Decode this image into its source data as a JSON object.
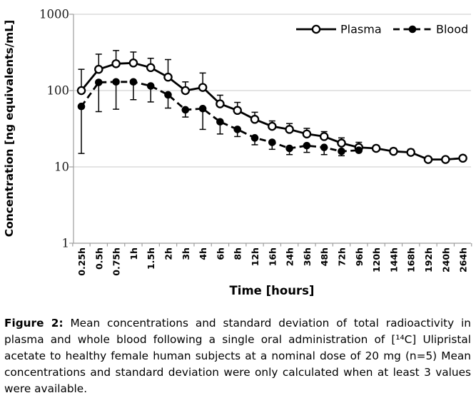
{
  "figure": {
    "caption_label": "Figure 2:",
    "caption_text": " Mean concentrations and standard deviation of total radioactivity in plasma and whole blood following a single oral administration of [¹⁴C] Ulipristal acetate to healthy female human subjects at a nominal dose of 20 mg (n=5) Mean concentrations and standard deviation were only calculated when at least 3 values were available."
  },
  "chart_data": {
    "type": "line",
    "y_scale": "log",
    "title": "",
    "xlabel": "Time [hours]",
    "ylabel": "Concentration [ng equivalents/mL]",
    "ylim": [
      1,
      1000
    ],
    "yticks": [
      1,
      10,
      100,
      1000
    ],
    "grid": "horizontal",
    "legend_position": "top-right-inside",
    "categories": [
      "0.25h",
      "0.5h",
      "0.75h",
      "1h",
      "1.5h",
      "2h",
      "3h",
      "4h",
      "6h",
      "8h",
      "12h",
      "16h",
      "24h",
      "36h",
      "48h",
      "72h",
      "96h",
      "120h",
      "144h",
      "168h",
      "192h",
      "240h",
      "264h"
    ],
    "series": [
      {
        "name": "Plasma",
        "marker": "open-circle",
        "line": "solid",
        "color": "#000000",
        "values": [
          100,
          190,
          225,
          230,
          200,
          150,
          100,
          110,
          67,
          55,
          42,
          34,
          31,
          27,
          25,
          20.5,
          18,
          17.5,
          16,
          15.5,
          12.5,
          12.5,
          13
        ],
        "err_hi": [
          190,
          300,
          335,
          320,
          265,
          255,
          130,
          170,
          87,
          70,
          52,
          40,
          37,
          32,
          29,
          24,
          21,
          19,
          17.5,
          17,
          null,
          null,
          null
        ],
        "err_lo": [
          null,
          null,
          null,
          null,
          null,
          null,
          null,
          null,
          null,
          null,
          null,
          null,
          null,
          null,
          null,
          null,
          null,
          null,
          null,
          null,
          null,
          null,
          null
        ]
      },
      {
        "name": "Blood",
        "marker": "filled-circle",
        "line": "dashed",
        "color": "#000000",
        "values": [
          62,
          128,
          130,
          130,
          115,
          88,
          56,
          58,
          39,
          31,
          24,
          21,
          17.5,
          19,
          18,
          16,
          16.5,
          null,
          null,
          null,
          null,
          null,
          null
        ],
        "err_hi": [
          null,
          null,
          null,
          null,
          null,
          null,
          null,
          null,
          null,
          null,
          null,
          null,
          null,
          null,
          null,
          null,
          null,
          null,
          null,
          null,
          null,
          null,
          null
        ],
        "err_lo": [
          15,
          53,
          57,
          76,
          71,
          59,
          45,
          31,
          27,
          25,
          19.5,
          17,
          14.5,
          15.5,
          14.5,
          14,
          null,
          null,
          null,
          null,
          null,
          null,
          null
        ]
      }
    ]
  }
}
